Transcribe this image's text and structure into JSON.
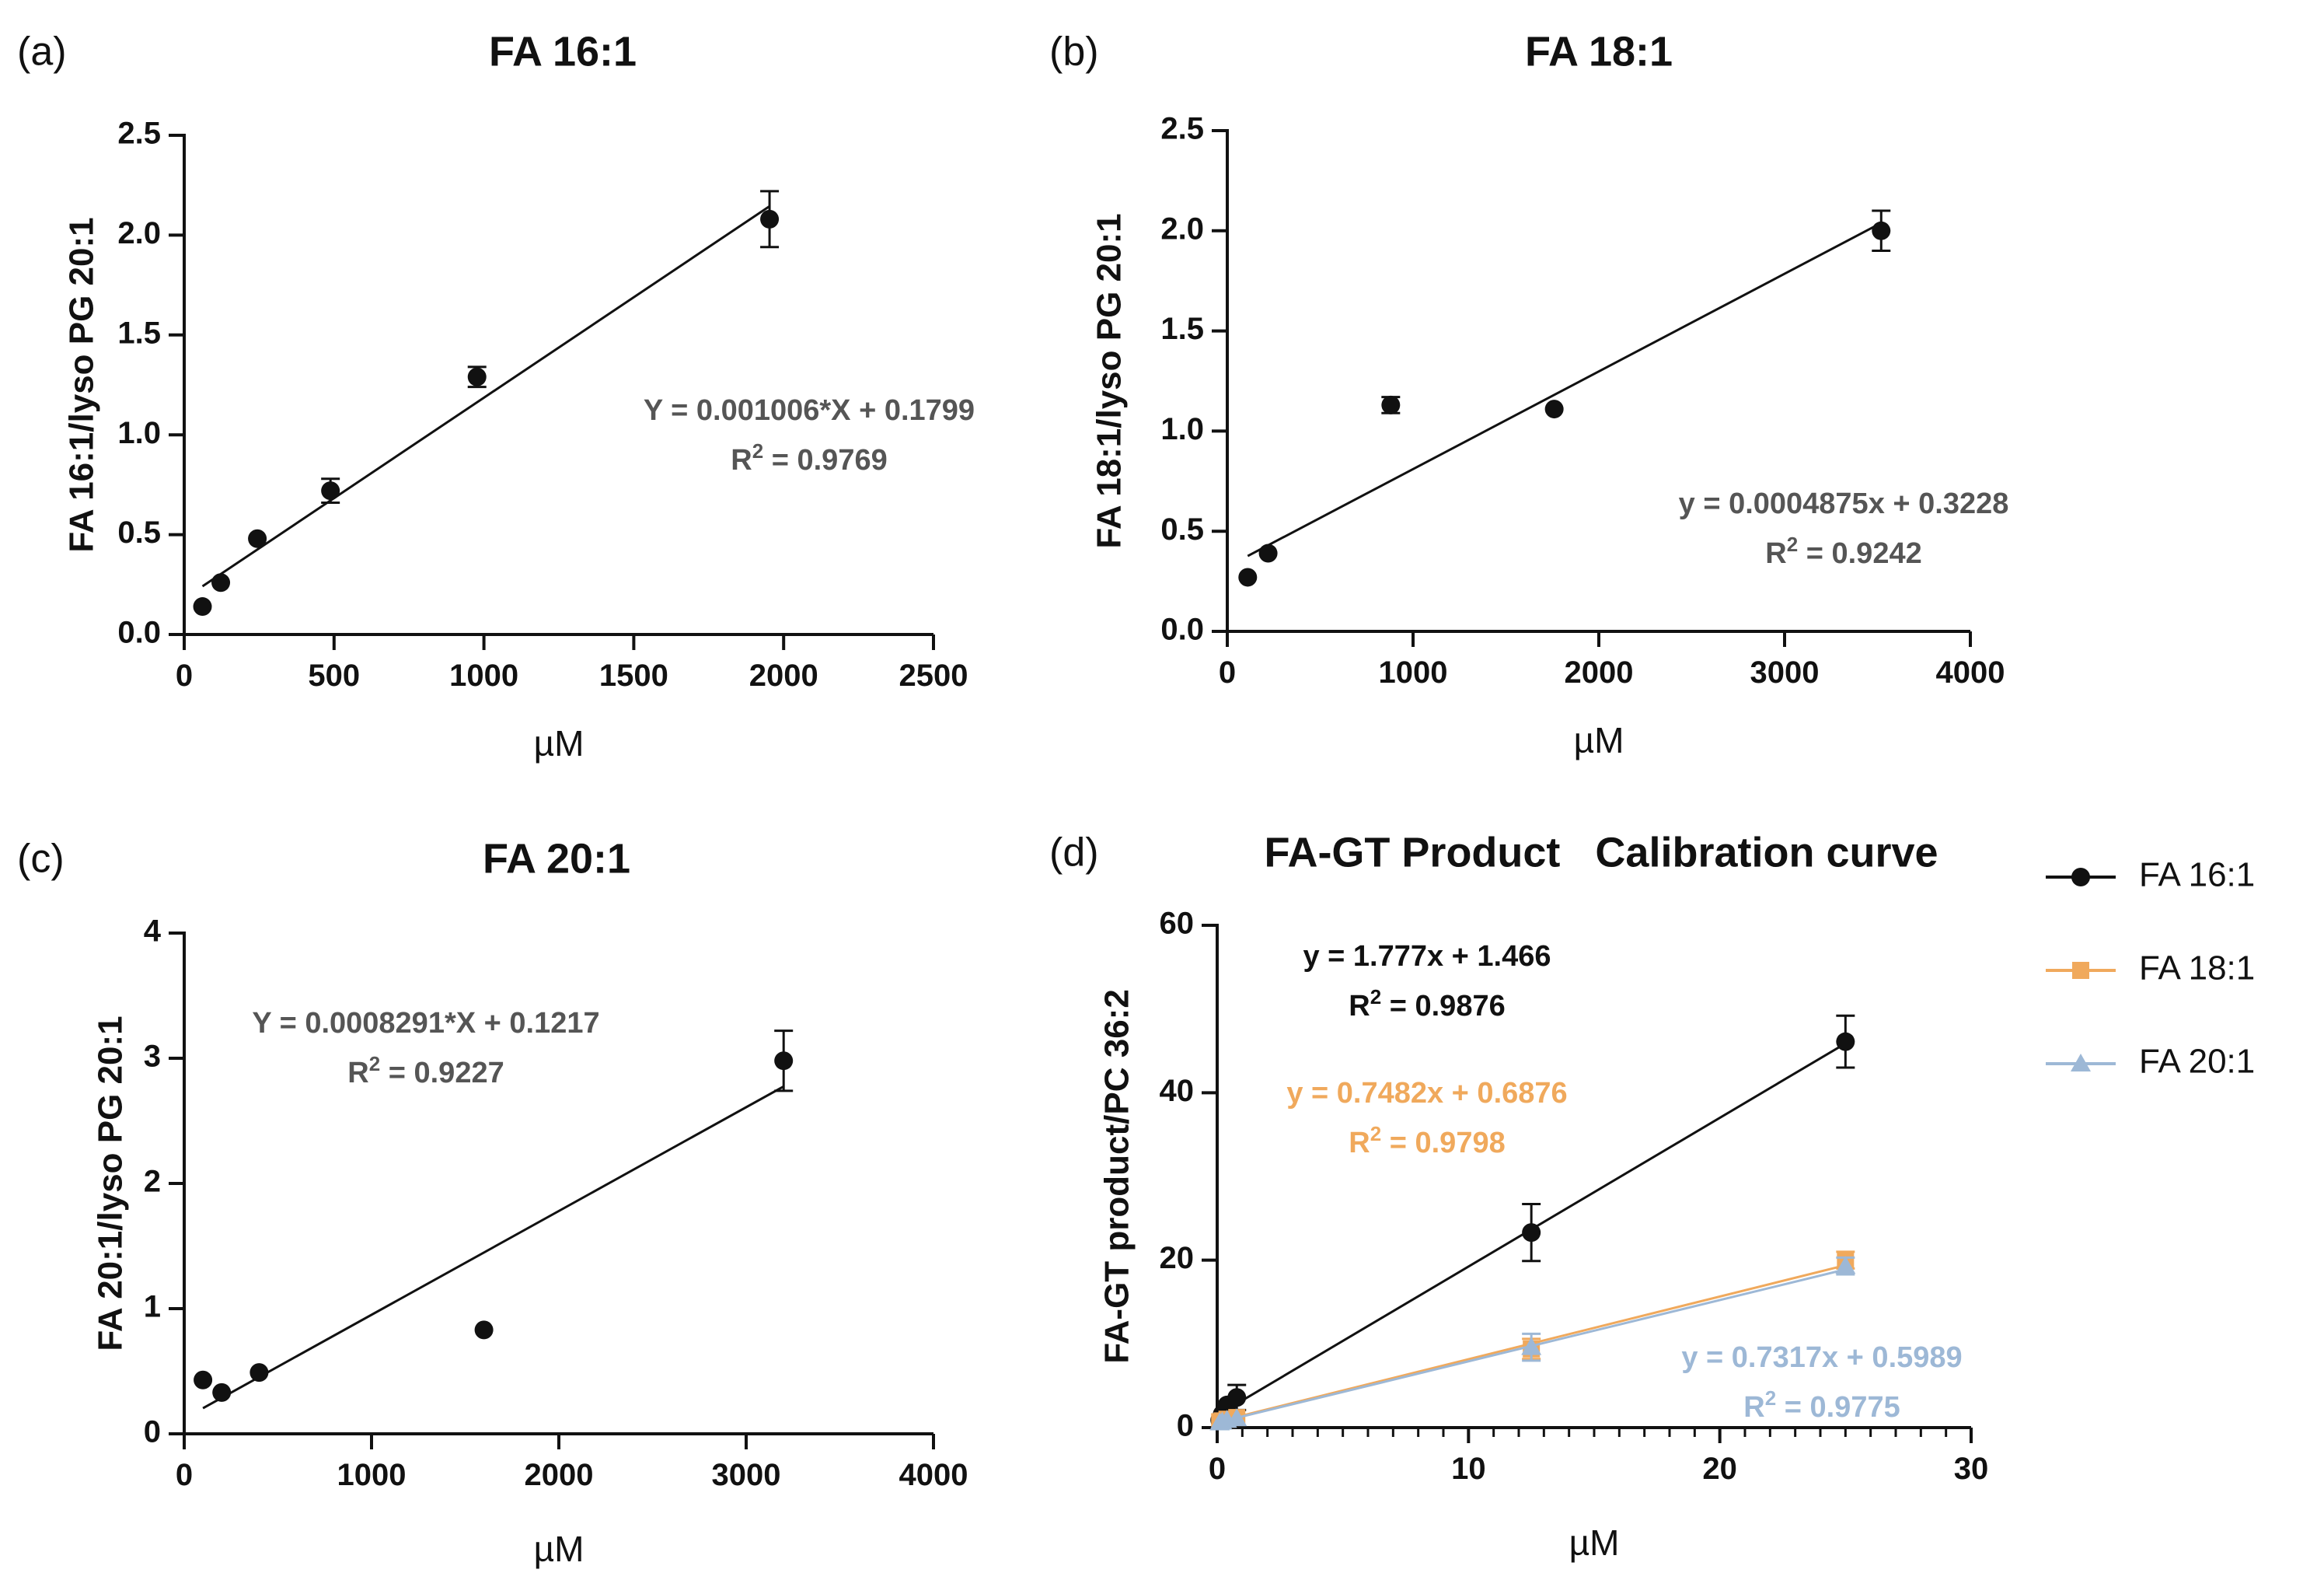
{
  "chart_data": [
    {
      "type": "scatter",
      "panel_label": "(a)",
      "title": "FA 16:1",
      "xlabel": "µM",
      "ylabel": "FA 16:1/lyso PG 20:1",
      "xlim": [
        0,
        2500
      ],
      "ylim": [
        0,
        2.5
      ],
      "xticks": [
        "0",
        "500",
        "1000",
        "1500",
        "2000",
        "2500"
      ],
      "xtick_values": [
        0,
        500,
        1000,
        1500,
        2000,
        2500
      ],
      "yticks": [
        "0.0",
        "0.5",
        "1.0",
        "1.5",
        "2.0",
        "2.5"
      ],
      "ytick_values": [
        0,
        0.5,
        1.0,
        1.5,
        2.0,
        2.5
      ],
      "grid": false,
      "series": [
        {
          "name": "FA 16:1",
          "color": "#111111",
          "marker": "circle",
          "x": [
            61,
            122,
            244,
            488,
            977,
            1953
          ],
          "y": [
            0.14,
            0.26,
            0.48,
            0.72,
            1.29,
            2.08
          ],
          "err": [
            0,
            0,
            0,
            0.06,
            0.05,
            0.14
          ],
          "fit": {
            "slope": 0.001006,
            "intercept": 0.1799,
            "x_range": [
              61,
              1953
            ]
          }
        }
      ],
      "annotations": [
        {
          "name": "equation",
          "text": "Y = 0.001006*X + 0.1799",
          "color": "#555555"
        },
        {
          "name": "r-squared",
          "text_prefix": "R",
          "superscript": "2",
          "text_suffix": " = 0.9769",
          "color": "#555555"
        }
      ]
    },
    {
      "type": "scatter",
      "panel_label": "(b)",
      "title": "FA 18:1",
      "xlabel": "µM",
      "ylabel": "FA 18:1/lyso PG 20:1",
      "xlim": [
        0,
        4000
      ],
      "ylim": [
        0,
        2.5
      ],
      "xticks": [
        "0",
        "1000",
        "2000",
        "3000",
        "4000"
      ],
      "xtick_values": [
        0,
        1000,
        2000,
        3000,
        4000
      ],
      "yticks": [
        "0.0",
        "0.5",
        "1.0",
        "1.5",
        "2.0",
        "2.5"
      ],
      "ytick_values": [
        0,
        0.5,
        1.0,
        1.5,
        2.0,
        2.5
      ],
      "grid": false,
      "series": [
        {
          "name": "FA 18:1",
          "color": "#111111",
          "marker": "circle",
          "x": [
            110,
            220,
            880,
            1760,
            3520
          ],
          "y": [
            0.27,
            0.39,
            1.13,
            1.11,
            2.0
          ],
          "err": [
            0,
            0,
            0.04,
            0,
            0.1
          ],
          "fit": {
            "slope": 0.0004875,
            "intercept": 0.3228,
            "x_range": [
              110,
              3520
            ]
          }
        }
      ],
      "annotations": [
        {
          "name": "equation",
          "text": "y = 0.0004875x + 0.3228",
          "color": "#555555"
        },
        {
          "name": "r-squared",
          "text_prefix": "R",
          "superscript": "2",
          "text_suffix": " = 0.9242",
          "color": "#555555"
        }
      ]
    },
    {
      "type": "scatter",
      "panel_label": "(c)",
      "title": "FA 20:1",
      "xlabel": "µM",
      "ylabel": "FA 20:1/lyso PG 20:1",
      "xlim": [
        0,
        4000
      ],
      "ylim": [
        0,
        4
      ],
      "xticks": [
        "0",
        "1000",
        "2000",
        "3000",
        "4000"
      ],
      "xtick_values": [
        0,
        1000,
        2000,
        3000,
        4000
      ],
      "yticks": [
        "0",
        "1",
        "2",
        "3",
        "4"
      ],
      "ytick_values": [
        0,
        1,
        2,
        3,
        4
      ],
      "grid": false,
      "series": [
        {
          "name": "FA 20:1",
          "color": "#111111",
          "marker": "circle",
          "x": [
            100,
            200,
            400,
            1600,
            3200
          ],
          "y": [
            0.43,
            0.33,
            0.49,
            0.83,
            2.98
          ],
          "err": [
            0,
            0,
            0,
            0,
            0.24
          ],
          "fit": {
            "slope": 0.0008291,
            "intercept": 0.1217,
            "x_range": [
              100,
              3200
            ]
          }
        }
      ],
      "annotations": [
        {
          "name": "equation",
          "text": "Y = 0.0008291*X + 0.1217",
          "color": "#555555"
        },
        {
          "name": "r-squared",
          "text_prefix": "R",
          "superscript": "2",
          "text_suffix": " = 0.9227",
          "color": "#555555"
        }
      ]
    },
    {
      "type": "scatter",
      "panel_label": "(d)",
      "title": "FA-GT Product   Calibration curve",
      "xlabel": "µM",
      "ylabel": "FA-GT product/PC 36:2",
      "xlim": [
        0,
        30
      ],
      "ylim": [
        0,
        60
      ],
      "xticks": [
        "0",
        "10",
        "20",
        "30"
      ],
      "xtick_values": [
        0,
        10,
        20,
        30
      ],
      "yticks": [
        "0",
        "20",
        "40",
        "60"
      ],
      "ytick_values": [
        0,
        20,
        40,
        60
      ],
      "minor_x_step": 1,
      "grid": false,
      "legend_position": "right",
      "series": [
        {
          "name": "FA 16:1",
          "color": "#111111",
          "marker": "circle",
          "x": [
            0.1,
            0.2,
            0.39,
            0.78,
            12.5,
            25
          ],
          "y": [
            0.9,
            1.6,
            2.7,
            3.6,
            23.3,
            46.1
          ],
          "err": [
            0,
            0,
            0,
            1.5,
            3.4,
            3.1
          ],
          "fit": {
            "slope": 1.777,
            "intercept": 1.466,
            "x_range": [
              0,
              25
            ]
          }
        },
        {
          "name": "FA 18:1",
          "color": "#f0a95c",
          "marker": "square",
          "x": [
            0.1,
            0.2,
            0.39,
            0.78,
            12.5,
            25
          ],
          "y": [
            0.7,
            0.8,
            1.0,
            1.2,
            9.4,
            20.0
          ],
          "err": [
            0,
            0,
            0,
            0,
            1.2,
            1.0
          ],
          "fit": {
            "slope": 0.7482,
            "intercept": 0.6876,
            "x_range": [
              0,
              25
            ]
          }
        },
        {
          "name": "FA 20:1",
          "color": "#9db8d6",
          "marker": "triangle",
          "x": [
            0.1,
            0.2,
            0.39,
            0.78,
            12.5,
            25
          ],
          "y": [
            0.6,
            0.7,
            0.9,
            1.1,
            9.6,
            19.3
          ],
          "err": [
            0,
            0,
            0,
            0,
            1.6,
            1.0
          ],
          "fit": {
            "slope": 0.7317,
            "intercept": 0.5989,
            "x_range": [
              0,
              25
            ]
          }
        }
      ],
      "annotations": [
        {
          "name": "equation-fa16",
          "text": "y = 1.777x + 1.466",
          "color": "#111111"
        },
        {
          "name": "r-squared-fa16",
          "text_prefix": "R",
          "superscript": "2",
          "text_suffix": " = 0.9876",
          "color": "#111111"
        },
        {
          "name": "equation-fa18",
          "text": "y = 0.7482x + 0.6876",
          "color": "#f0a95c"
        },
        {
          "name": "r-squared-fa18",
          "text_prefix": "R",
          "superscript": "2",
          "text_suffix": " = 0.9798",
          "color": "#f0a95c"
        },
        {
          "name": "equation-fa20",
          "text": "y = 0.7317x + 0.5989",
          "color": "#9db8d6"
        },
        {
          "name": "r-squared-fa20",
          "text_prefix": "R",
          "superscript": "2",
          "text_suffix": " = 0.9775",
          "color": "#9db8d6"
        }
      ]
    }
  ]
}
